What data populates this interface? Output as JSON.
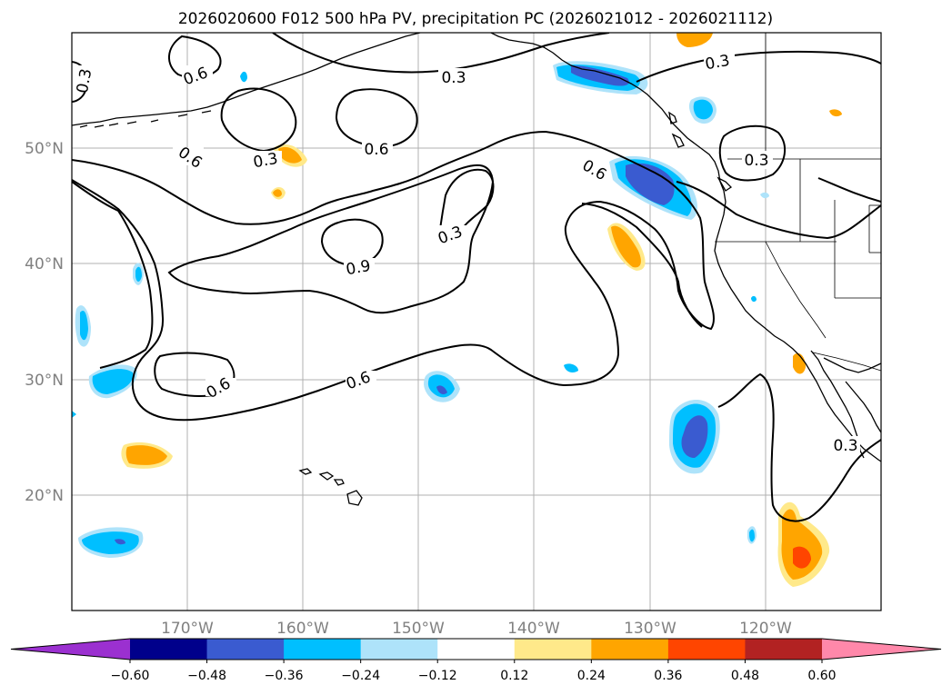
{
  "title": "2026020600 F012 500 hPa PV, precipitation PC (2026021012 - 2026021112)",
  "lon_ticks": [
    "170°W",
    "160°W",
    "150°W",
    "140°W",
    "130°W",
    "120°W"
  ],
  "lat_ticks": [
    "50°N",
    "40°N",
    "30°N",
    "20°N"
  ],
  "contour_labels": [
    "0.3",
    "0.6",
    "0.3",
    "0.6",
    "0.3",
    "0.6",
    "0.6",
    "0.3",
    "0.9",
    "0.6",
    "0.6",
    "0.3",
    "0.3",
    "0.3"
  ],
  "colorbar": {
    "ticks": [
      "−0.60",
      "−0.48",
      "−0.36",
      "−0.24",
      "−0.12",
      "0.12",
      "0.24",
      "0.36",
      "0.48",
      "0.60"
    ],
    "colors": [
      "#9b30d0",
      "#00008b",
      "#3a5bd0",
      "#00bfff",
      "#aee3fa",
      "#ffffff",
      "#ffe98a",
      "#ffa500",
      "#ff4500",
      "#b22222",
      "#ff88aa"
    ]
  }
}
